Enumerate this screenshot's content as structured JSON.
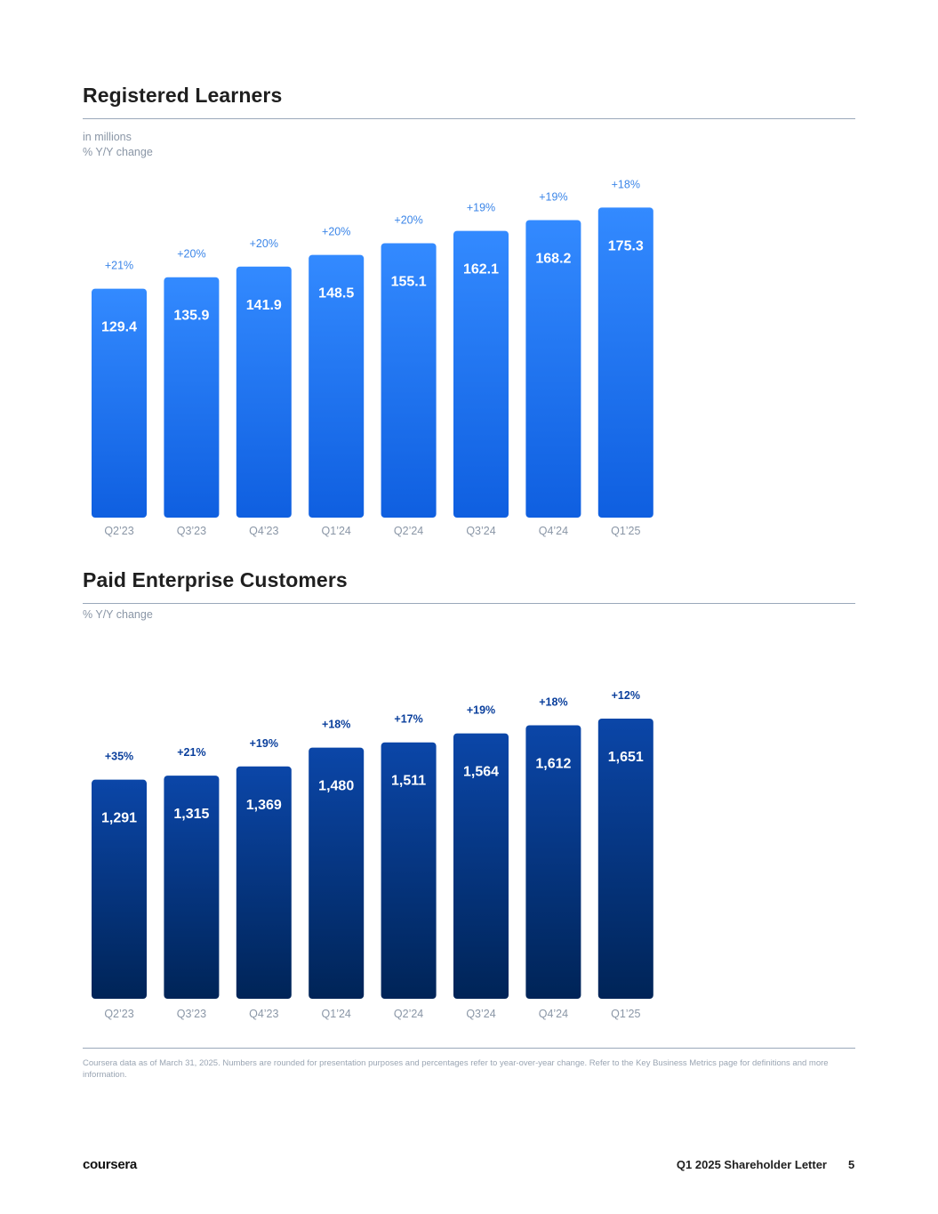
{
  "chart_data": [
    {
      "type": "bar",
      "title": "Registered Learners",
      "subtitle_lines": [
        "in millions",
        "% Y/Y change"
      ],
      "categories": [
        "Q2’23",
        "Q3’23",
        "Q4’23",
        "Q1’24",
        "Q2’24",
        "Q3’24",
        "Q4’24",
        "Q1’25"
      ],
      "values": [
        129.4,
        135.9,
        141.9,
        148.5,
        155.1,
        162.1,
        168.2,
        175.3
      ],
      "value_labels": [
        "129.4",
        "135.9",
        "141.9",
        "148.5",
        "155.1",
        "162.1",
        "168.2",
        "175.3"
      ],
      "yoy_change": [
        "+21%",
        "+20%",
        "+20%",
        "+20%",
        "+20%",
        "+19%",
        "+19%",
        "+18%"
      ],
      "ylim": [
        0,
        182
      ],
      "colors": {
        "bar_top": "#338aff",
        "bar_bottom": "#0f5fe0",
        "pct_label": "#3c86e8"
      }
    },
    {
      "type": "bar",
      "title": "Paid Enterprise Customers",
      "subtitle_lines": [
        "% Y/Y change"
      ],
      "categories": [
        "Q2’23",
        "Q3’23",
        "Q4’23",
        "Q1’24",
        "Q2’24",
        "Q3’24",
        "Q4’24",
        "Q1’25"
      ],
      "values": [
        1291,
        1315,
        1369,
        1480,
        1511,
        1564,
        1612,
        1651
      ],
      "value_labels": [
        "1,291",
        "1,315",
        "1,369",
        "1,480",
        "1,511",
        "1,564",
        "1,612",
        "1,651"
      ],
      "yoy_change": [
        "+35%",
        "+21%",
        "+19%",
        "+18%",
        "+17%",
        "+19%",
        "+18%",
        "+12%"
      ],
      "ylim": [
        0,
        1700
      ],
      "colors": {
        "bar_top": "#0b46a8",
        "bar_bottom": "#002457",
        "pct_label": "#0a3f9c"
      }
    }
  ],
  "footnote": "Coursera data as of March 31, 2025. Numbers are rounded for presentation purposes and percentages refer to year-over-year change. Refer to the Key Business Metrics page for definitions and more information.",
  "footer": {
    "logo": "coursera",
    "document_title": "Q1 2025 Shareholder Letter",
    "page_number": "5"
  }
}
